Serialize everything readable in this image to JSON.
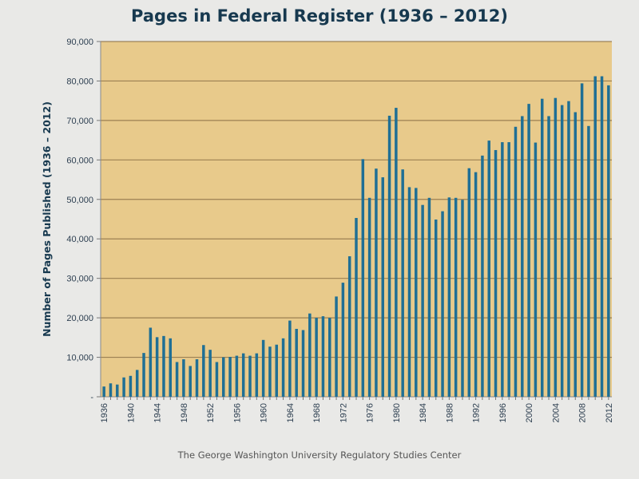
{
  "chart_data": {
    "type": "bar",
    "title": "Pages in Federal Register (1936 – 2012)",
    "xlabel": "",
    "ylabel": "Number of Pages Published (1936 – 2012)",
    "ylim": [
      0,
      90000
    ],
    "yticks": [
      0,
      10000,
      20000,
      30000,
      40000,
      50000,
      60000,
      70000,
      80000,
      90000
    ],
    "ytick_labels": [
      "-",
      "10,000",
      "20,000",
      "30,000",
      "40,000",
      "50,000",
      "60,000",
      "70,000",
      "80,000",
      "90,000"
    ],
    "xtick_labels": [
      "1936",
      "1940",
      "1944",
      "1948",
      "1952",
      "1956",
      "1960",
      "1964",
      "1968",
      "1972",
      "1976",
      "1980",
      "1984",
      "1988",
      "1992",
      "1996",
      "2000",
      "2004",
      "2008",
      "2012"
    ],
    "grid": "horizontal",
    "colors": {
      "bar": "#1f6f95",
      "plot_background": "#e8ca8b",
      "gridline": "#8a6e45",
      "title": "#17394f"
    },
    "categories": [
      1936,
      1937,
      1938,
      1939,
      1940,
      1941,
      1942,
      1943,
      1944,
      1945,
      1946,
      1947,
      1948,
      1949,
      1950,
      1951,
      1952,
      1953,
      1954,
      1955,
      1956,
      1957,
      1958,
      1959,
      1960,
      1961,
      1962,
      1963,
      1964,
      1965,
      1966,
      1967,
      1968,
      1969,
      1970,
      1971,
      1972,
      1973,
      1974,
      1975,
      1976,
      1977,
      1978,
      1979,
      1980,
      1981,
      1982,
      1983,
      1984,
      1985,
      1986,
      1987,
      1988,
      1989,
      1990,
      1991,
      1992,
      1993,
      1994,
      1995,
      1996,
      1997,
      1998,
      1999,
      2000,
      2001,
      2002,
      2003,
      2004,
      2005,
      2006,
      2007,
      2008,
      2009,
      2010,
      2011,
      2012
    ],
    "values": [
      2600,
      3400,
      3100,
      4900,
      5300,
      6800,
      11100,
      17500,
      15100,
      15400,
      14800,
      8800,
      9500,
      7800,
      9500,
      13100,
      11900,
      8800,
      10000,
      10100,
      10400,
      11000,
      10400,
      11000,
      14400,
      12700,
      13200,
      14800,
      19300,
      17200,
      16900,
      21100,
      20000,
      20400,
      20000,
      25400,
      28900,
      35600,
      45300,
      60200,
      50400,
      57800,
      55600,
      71200,
      73200,
      57600,
      53100,
      52900,
      48600,
      50400,
      44900,
      47000,
      50500,
      50400,
      49900,
      57900,
      56900,
      61100,
      64900,
      62500,
      64500,
      64500,
      68400,
      71100,
      74200,
      64400,
      75500,
      71100,
      75700,
      73900,
      74900,
      72100,
      79400,
      68600,
      81200,
      81200,
      78900
    ]
  },
  "footer": "The George Washington University Regulatory Studies Center"
}
